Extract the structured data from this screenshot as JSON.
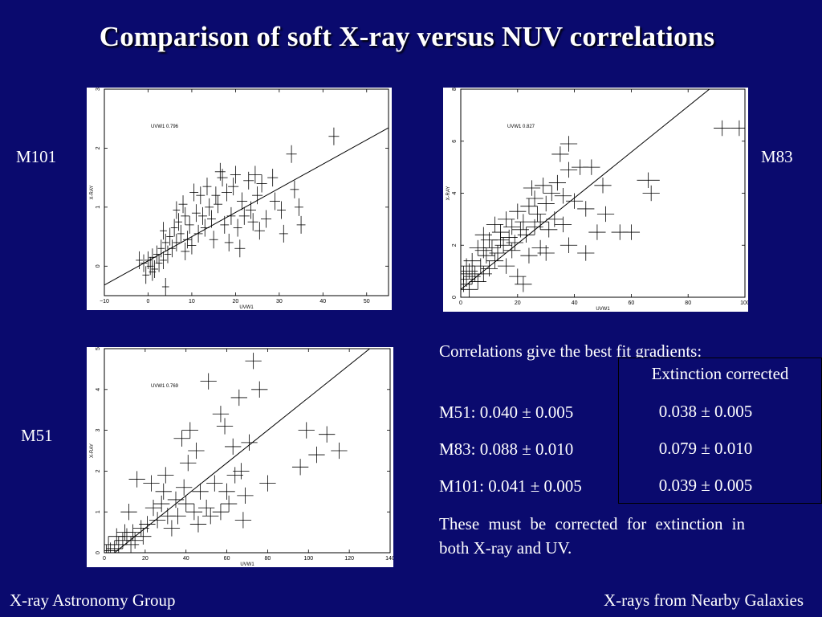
{
  "slide": {
    "title": "Comparison of soft X-ray versus NUV correlations",
    "labels": {
      "m101": "M101",
      "m83": "M83",
      "m51": "M51"
    },
    "text": {
      "intro": "Correlations give the best fit gradients:",
      "m51": "M51: 0.040 ± 0.005",
      "m83": "M83: 0.088 ± 0.010",
      "m101": "M101: 0.041 ± 0.005",
      "note": "These must be corrected for extinction in both X-ray and UV."
    },
    "extinction": {
      "header": "Extinction corrected",
      "m51": "0.038 ± 0.005",
      "m83": "0.079 ± 0.010",
      "m101": "0.039 ± 0.005"
    },
    "footer": {
      "left": "X-ray Astronomy Group",
      "right": "X-rays from Nearby Galaxies"
    }
  },
  "chart_data": [
    {
      "galaxy": "M101",
      "type": "scatter",
      "xlabel": "UVW1",
      "ylabel": "X-RAY",
      "annotation": "UVW1 0.796",
      "xlim": [
        -10,
        55
      ],
      "ylim": [
        -0.5,
        3
      ],
      "xticks": [
        -10,
        0,
        10,
        20,
        30,
        40,
        50
      ],
      "yticks": [
        0,
        1,
        2,
        3
      ],
      "fit": {
        "slope": 0.041,
        "intercept": 0.09
      },
      "points": [
        [
          42.5,
          2.2,
          1.2,
          0.15
        ],
        [
          32.8,
          1.9,
          1.2,
          0.15
        ],
        [
          24.5,
          1.55,
          1.5,
          0.15
        ],
        [
          28.5,
          1.5,
          1.2,
          0.15
        ],
        [
          33.5,
          1.3,
          1.0,
          0.15
        ],
        [
          34.5,
          1.0,
          1.0,
          0.15
        ],
        [
          35,
          0.7,
          1.0,
          0.15
        ],
        [
          30.5,
          0.95,
          1.0,
          0.15
        ],
        [
          31,
          0.55,
          1.0,
          0.15
        ],
        [
          26,
          1.4,
          1.2,
          0.15
        ],
        [
          23.5,
          0.95,
          1.2,
          0.15
        ],
        [
          21.5,
          1.1,
          1.2,
          0.15
        ],
        [
          20,
          1.55,
          1.2,
          0.15
        ],
        [
          18,
          1.25,
          1.2,
          0.15
        ],
        [
          17,
          1.5,
          1.2,
          0.15
        ],
        [
          15.5,
          1.2,
          1.0,
          0.15
        ],
        [
          14,
          1.0,
          1.0,
          0.15
        ],
        [
          13.5,
          1.35,
          1.0,
          0.15
        ],
        [
          12.5,
          0.85,
          1.0,
          0.15
        ],
        [
          12,
          1.2,
          1.0,
          0.15
        ],
        [
          11,
          0.9,
          1.0,
          0.15
        ],
        [
          10.5,
          1.25,
          1.0,
          0.15
        ],
        [
          9.5,
          0.7,
          1.0,
          0.15
        ],
        [
          8.5,
          0.85,
          1.0,
          0.15
        ],
        [
          8,
          1.05,
          1.0,
          0.15
        ],
        [
          7.5,
          0.55,
          0.8,
          0.15
        ],
        [
          7,
          0.75,
          0.8,
          0.15
        ],
        [
          6.5,
          0.4,
          0.8,
          0.15
        ],
        [
          6,
          0.65,
          0.8,
          0.15
        ],
        [
          5.5,
          0.3,
          0.8,
          0.15
        ],
        [
          5,
          0.5,
          0.8,
          0.15
        ],
        [
          4.5,
          0.2,
          0.8,
          0.15
        ],
        [
          4,
          0.4,
          0.8,
          0.15
        ],
        [
          3.5,
          0.1,
          0.8,
          0.15
        ],
        [
          3,
          0.3,
          0.8,
          0.15
        ],
        [
          2.5,
          0.05,
          0.8,
          0.15
        ],
        [
          2,
          0.2,
          0.8,
          0.15
        ],
        [
          1.5,
          -0.05,
          0.8,
          0.15
        ],
        [
          1,
          0.15,
          0.8,
          0.15
        ],
        [
          0.5,
          0.0,
          0.8,
          0.15
        ],
        [
          0,
          0.1,
          0.8,
          0.15
        ],
        [
          -1,
          0.05,
          0.8,
          0.15
        ],
        [
          -2,
          0.1,
          0.8,
          0.15
        ],
        [
          -0.5,
          -0.15,
          0.8,
          0.15
        ],
        [
          1,
          -0.1,
          0.8,
          0.15
        ],
        [
          4,
          -0.35,
          0.8,
          0.15
        ],
        [
          16,
          1.05,
          1.0,
          0.15
        ],
        [
          17.5,
          0.7,
          1.0,
          0.15
        ],
        [
          19,
          0.85,
          1.0,
          0.15
        ],
        [
          20.5,
          0.65,
          1.0,
          0.15
        ],
        [
          22,
          0.85,
          1.2,
          0.15
        ],
        [
          24,
          0.75,
          1.2,
          0.15
        ],
        [
          25.5,
          0.6,
          1.2,
          0.15
        ],
        [
          27,
          0.8,
          1.2,
          0.15
        ],
        [
          29,
          1.1,
          1.2,
          0.15
        ],
        [
          15,
          0.45,
          1.0,
          0.15
        ],
        [
          11.5,
          0.55,
          1.0,
          0.15
        ],
        [
          13,
          0.65,
          1.0,
          0.15
        ],
        [
          9,
          0.45,
          1.0,
          0.15
        ],
        [
          6.5,
          0.95,
          0.8,
          0.15
        ],
        [
          3.5,
          0.6,
          0.8,
          0.15
        ],
        [
          18.5,
          0.4,
          1.0,
          0.15
        ],
        [
          21,
          0.3,
          1.2,
          0.15
        ],
        [
          8.5,
          0.25,
          1.0,
          0.15
        ],
        [
          10,
          0.35,
          1.0,
          0.15
        ],
        [
          25,
          1.2,
          1.2,
          0.15
        ],
        [
          19.5,
          1.35,
          1.2,
          0.15
        ],
        [
          14.5,
          0.8,
          1.0,
          0.15
        ],
        [
          23,
          1.45,
          1.2,
          0.15
        ],
        [
          16.5,
          1.6,
          1.2,
          0.15
        ]
      ]
    },
    {
      "galaxy": "M83",
      "type": "scatter",
      "xlabel": "UVW1",
      "ylabel": "X-RAY",
      "annotation": "UVW1 0.827",
      "xlim": [
        0,
        100
      ],
      "ylim": [
        0,
        8
      ],
      "xticks": [
        0,
        20,
        40,
        60,
        80,
        100
      ],
      "yticks": [
        0,
        2,
        4,
        6,
        8
      ],
      "fit": {
        "slope": 0.088,
        "intercept": 0.3
      },
      "points": [
        [
          92,
          6.5,
          3,
          0.3
        ],
        [
          98,
          6.5,
          3,
          0.3
        ],
        [
          66,
          4.5,
          4,
          0.3
        ],
        [
          67,
          4.0,
          3,
          0.3
        ],
        [
          38,
          5.9,
          3,
          0.3
        ],
        [
          35,
          5.5,
          3,
          0.3
        ],
        [
          38,
          4.9,
          3,
          0.3
        ],
        [
          42,
          5.0,
          3,
          0.3
        ],
        [
          46,
          5.0,
          3,
          0.3
        ],
        [
          50,
          4.3,
          3,
          0.3
        ],
        [
          34,
          4.4,
          3,
          0.3
        ],
        [
          32,
          4.0,
          3,
          0.3
        ],
        [
          29,
          4.3,
          3,
          0.3
        ],
        [
          25,
          4.2,
          3,
          0.3
        ],
        [
          36,
          3.9,
          3,
          0.3
        ],
        [
          40,
          3.7,
          3,
          0.3
        ],
        [
          44,
          3.4,
          3,
          0.3
        ],
        [
          51,
          3.2,
          3,
          0.3
        ],
        [
          48,
          2.5,
          3,
          0.3
        ],
        [
          56,
          2.5,
          3,
          0.3
        ],
        [
          60,
          2.5,
          3,
          0.3
        ],
        [
          38,
          2.0,
          3,
          0.3
        ],
        [
          44,
          1.7,
          3,
          0.3
        ],
        [
          30,
          3.6,
          3,
          0.3
        ],
        [
          27,
          3.2,
          3,
          0.3
        ],
        [
          24,
          3.5,
          3,
          0.3
        ],
        [
          22,
          2.9,
          3,
          0.3
        ],
        [
          20,
          3.3,
          3,
          0.3
        ],
        [
          18,
          2.7,
          3,
          0.3
        ],
        [
          16,
          3.0,
          3,
          0.3
        ],
        [
          14,
          2.5,
          3,
          0.3
        ],
        [
          12,
          2.8,
          3,
          0.3
        ],
        [
          10,
          2.2,
          3,
          0.3
        ],
        [
          8,
          2.4,
          3,
          0.3
        ],
        [
          6,
          1.9,
          3,
          0.3
        ],
        [
          4,
          1.4,
          3,
          0.3
        ],
        [
          3,
          1.0,
          3,
          0.3
        ],
        [
          2,
          0.7,
          3,
          0.3
        ],
        [
          1,
          0.5,
          3,
          0.3
        ],
        [
          2,
          1.2,
          3,
          0.3
        ],
        [
          5,
          0.9,
          3,
          0.3
        ],
        [
          7,
          1.2,
          3,
          0.3
        ],
        [
          9,
          1.6,
          3,
          0.3
        ],
        [
          11,
          1.9,
          3,
          0.3
        ],
        [
          13,
          1.7,
          3,
          0.3
        ],
        [
          15,
          2.0,
          3,
          0.3
        ],
        [
          17,
          2.3,
          3,
          0.3
        ],
        [
          19,
          2.1,
          3,
          0.3
        ],
        [
          21,
          2.6,
          3,
          0.3
        ],
        [
          23,
          2.4,
          3,
          0.3
        ],
        [
          26,
          2.7,
          3,
          0.3
        ],
        [
          28,
          2.9,
          3,
          0.3
        ],
        [
          31,
          2.6,
          3,
          0.3
        ],
        [
          33,
          3.0,
          3,
          0.3
        ],
        [
          36,
          2.8,
          3,
          0.3
        ],
        [
          3,
          0.3,
          3,
          0.3
        ],
        [
          6,
          0.6,
          3,
          0.3
        ],
        [
          8,
          0.9,
          3,
          0.3
        ],
        [
          10,
          1.1,
          3,
          0.3
        ],
        [
          12,
          1.4,
          3,
          0.3
        ],
        [
          16,
          1.2,
          3,
          0.3
        ],
        [
          20,
          0.8,
          3,
          0.3
        ],
        [
          24,
          1.6,
          3,
          0.3
        ],
        [
          28,
          1.9,
          3,
          0.3
        ],
        [
          30,
          1.7,
          3,
          0.3
        ],
        [
          22,
          0.5,
          3,
          0.3
        ],
        [
          4,
          0.8,
          3,
          0.3
        ],
        [
          1,
          0.9,
          3,
          0.3
        ],
        [
          8,
          1.8,
          3,
          0.3
        ],
        [
          14,
          2.2,
          3,
          0.3
        ],
        [
          18,
          1.8,
          3,
          0.3
        ],
        [
          26,
          3.8,
          3,
          0.3
        ]
      ]
    },
    {
      "galaxy": "M51",
      "type": "scatter",
      "xlabel": "UVW1",
      "ylabel": "X-RAY",
      "annotation": "UVW1 0.769",
      "xlim": [
        0,
        140
      ],
      "ylim": [
        0,
        5
      ],
      "xticks": [
        0,
        20,
        40,
        60,
        80,
        100,
        120,
        140
      ],
      "yticks": [
        0,
        1,
        2,
        3,
        4,
        5
      ],
      "fit": {
        "slope": 0.04,
        "intercept": -0.2
      },
      "points": [
        [
          73,
          4.7,
          4,
          0.2
        ],
        [
          51,
          4.2,
          4,
          0.2
        ],
        [
          76,
          4.0,
          4,
          0.2
        ],
        [
          66,
          3.8,
          4,
          0.2
        ],
        [
          57,
          3.4,
          4,
          0.2
        ],
        [
          59,
          3.1,
          4,
          0.2
        ],
        [
          42,
          3.0,
          4,
          0.2
        ],
        [
          38,
          2.8,
          4,
          0.2
        ],
        [
          71,
          2.7,
          4,
          0.2
        ],
        [
          99,
          3.0,
          4,
          0.2
        ],
        [
          109,
          2.9,
          4,
          0.2
        ],
        [
          115,
          2.5,
          4,
          0.2
        ],
        [
          104,
          2.4,
          4,
          0.2
        ],
        [
          96,
          2.1,
          4,
          0.2
        ],
        [
          63,
          2.6,
          4,
          0.2
        ],
        [
          45,
          2.5,
          4,
          0.2
        ],
        [
          41,
          2.2,
          4,
          0.2
        ],
        [
          67,
          2.0,
          4,
          0.2
        ],
        [
          64,
          1.9,
          4,
          0.2
        ],
        [
          80,
          1.7,
          4,
          0.2
        ],
        [
          54,
          1.7,
          4,
          0.2
        ],
        [
          47,
          1.5,
          4,
          0.2
        ],
        [
          60,
          1.5,
          4,
          0.2
        ],
        [
          69,
          1.4,
          4,
          0.2
        ],
        [
          23,
          1.7,
          4,
          0.2
        ],
        [
          16,
          1.8,
          4,
          0.2
        ],
        [
          29,
          1.5,
          4,
          0.2
        ],
        [
          35,
          1.3,
          4,
          0.2
        ],
        [
          40,
          1.2,
          4,
          0.2
        ],
        [
          44,
          1.0,
          4,
          0.2
        ],
        [
          50,
          1.1,
          4,
          0.2
        ],
        [
          57,
          1.0,
          4,
          0.2
        ],
        [
          68,
          0.8,
          4,
          0.2
        ],
        [
          36,
          0.9,
          4,
          0.2
        ],
        [
          31,
          0.9,
          4,
          0.2
        ],
        [
          26,
          0.8,
          4,
          0.2
        ],
        [
          21,
          0.7,
          4,
          0.2
        ],
        [
          18,
          0.6,
          4,
          0.2
        ],
        [
          14,
          0.5,
          4,
          0.2
        ],
        [
          11,
          0.4,
          4,
          0.2
        ],
        [
          9,
          0.3,
          4,
          0.2
        ],
        [
          7,
          0.2,
          4,
          0.2
        ],
        [
          5,
          0.1,
          4,
          0.2
        ],
        [
          3,
          0.05,
          4,
          0.2
        ],
        [
          15,
          0.3,
          4,
          0.2
        ],
        [
          19,
          0.4,
          4,
          0.2
        ],
        [
          24,
          1.1,
          4,
          0.2
        ],
        [
          28,
          1.2,
          4,
          0.2
        ],
        [
          33,
          0.6,
          4,
          0.2
        ],
        [
          12,
          1.0,
          4,
          0.2
        ],
        [
          10,
          0.5,
          4,
          0.2
        ],
        [
          6,
          0.4,
          4,
          0.2
        ],
        [
          2,
          0.2,
          4,
          0.2
        ],
        [
          1,
          0.0,
          4,
          0.2
        ],
        [
          46,
          0.7,
          4,
          0.2
        ],
        [
          52,
          0.9,
          4,
          0.2
        ],
        [
          61,
          1.2,
          4,
          0.2
        ],
        [
          39,
          1.6,
          4,
          0.2
        ],
        [
          30,
          1.9,
          4,
          0.2
        ],
        [
          13,
          0.2,
          4,
          0.2
        ]
      ]
    }
  ]
}
